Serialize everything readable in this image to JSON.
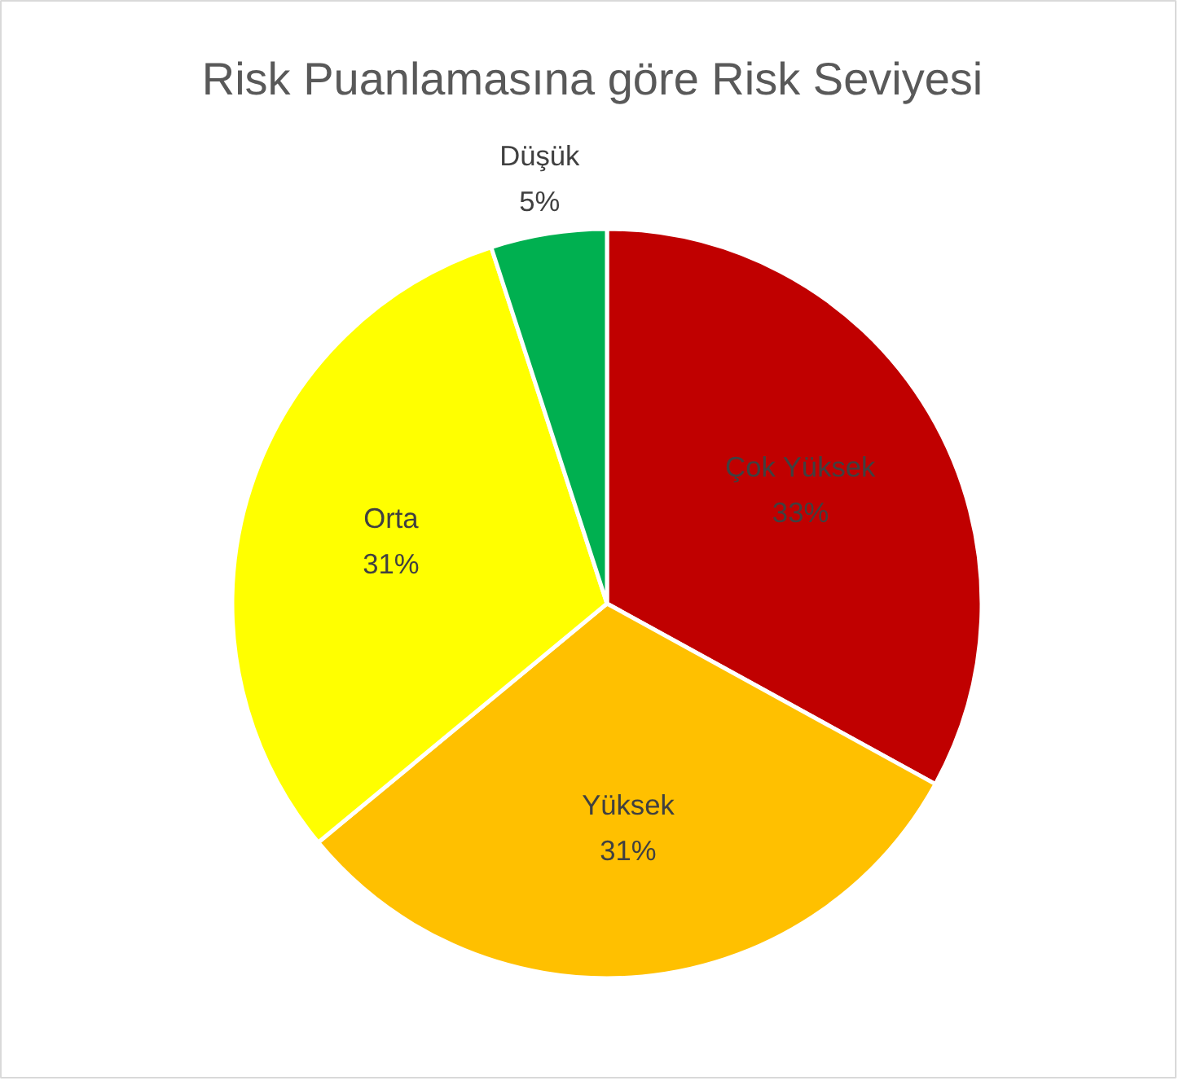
{
  "chart_data": {
    "type": "pie",
    "title": "Risk Puanlamasına göre Risk Seviyesi",
    "categories": [
      "Çok Yüksek",
      "Yüksek",
      "Orta",
      "Düşük"
    ],
    "values": [
      33,
      31,
      31,
      5
    ],
    "colors": [
      "#c00000",
      "#ffc000",
      "#ffff00",
      "#00b050"
    ],
    "value_labels": [
      "33%",
      "31%",
      "31%",
      "5%"
    ]
  }
}
